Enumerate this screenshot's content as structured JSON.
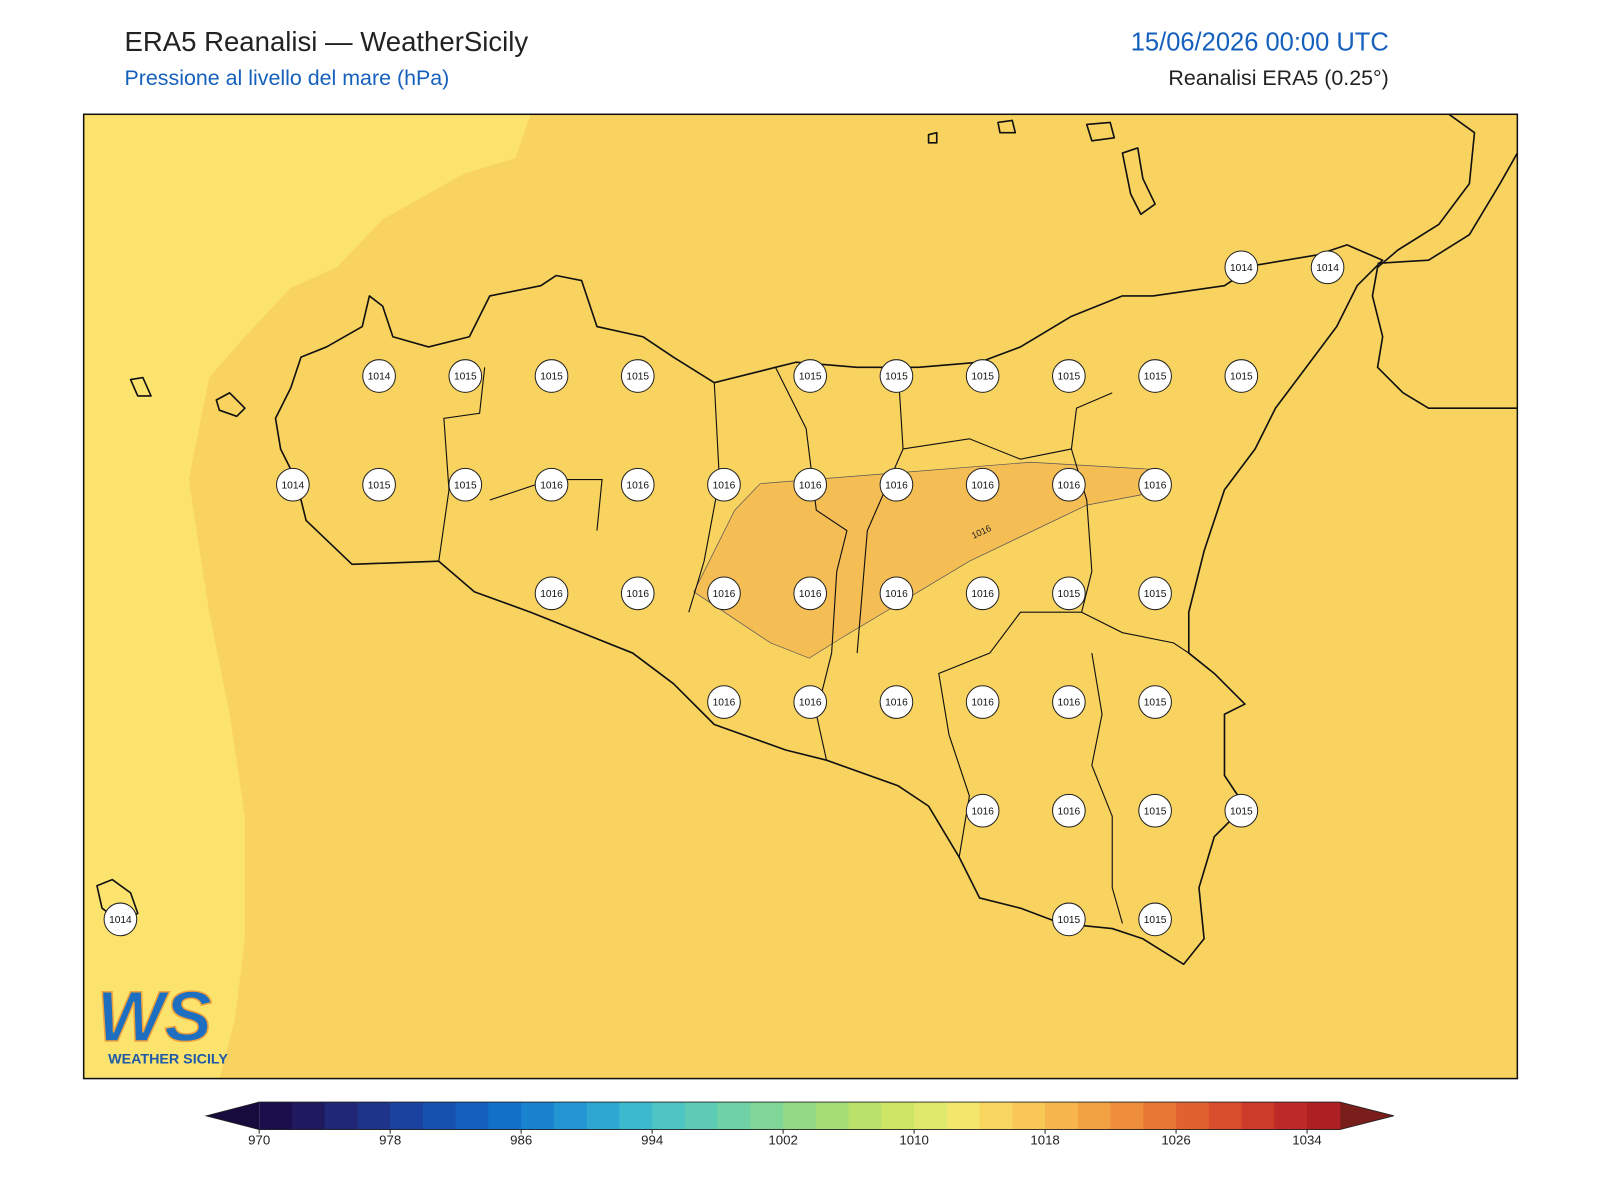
{
  "header": {
    "title": "ERA5 Reanalisi — WeatherSicily",
    "subtitle": "Pressione al livello del mare (hPa)",
    "datetime": "15/06/2026 00:00 UTC",
    "source": "Reanalisi ERA5 (0.25°)"
  },
  "map": {
    "stations": [
      1014,
      1014,
      1014,
      1015,
      1015,
      1015,
      1015,
      1015,
      1015,
      1015,
      1015,
      1015,
      1014,
      1015,
      1015,
      1016,
      1016,
      1016,
      1016,
      1016,
      1016,
      1016,
      1016,
      1016,
      1016,
      1016,
      1016,
      1016,
      1016,
      1015,
      1015,
      1016,
      1016,
      1016,
      1016,
      1016,
      1015,
      1016,
      1016,
      1015,
      1015,
      1015,
      1015,
      1014
    ],
    "contour_label": "1016"
  },
  "colorbar": {
    "lim": [
      970,
      1036
    ],
    "ticks": [
      970,
      978,
      986,
      994,
      1002,
      1010,
      1018,
      1026,
      1034
    ],
    "colors": [
      "#1c0e4c",
      "#1f1a60",
      "#202774",
      "#1e3488",
      "#1b429e",
      "#1751b0",
      "#1560bf",
      "#1370c8",
      "#1a83d0",
      "#2395d2",
      "#2ea8d3",
      "#3cb9cd",
      "#4ec5c2",
      "#5eccb5",
      "#6fd2a6",
      "#80d696",
      "#93da86",
      "#a6de76",
      "#bae26a",
      "#cee666",
      "#e0e96b",
      "#f2e66d",
      "#f9d660",
      "#f8c756",
      "#f6b54d",
      "#f2a143",
      "#ee8d3b",
      "#e87734",
      "#e2622f",
      "#d84e2c",
      "#cc3a2a",
      "#bd2a27",
      "#ad2024"
    ],
    "under_color": "#170a3c",
    "over_color": "#7a1e1b"
  },
  "logo": {
    "text": "WS",
    "caption": "WEATHER SICILY"
  }
}
